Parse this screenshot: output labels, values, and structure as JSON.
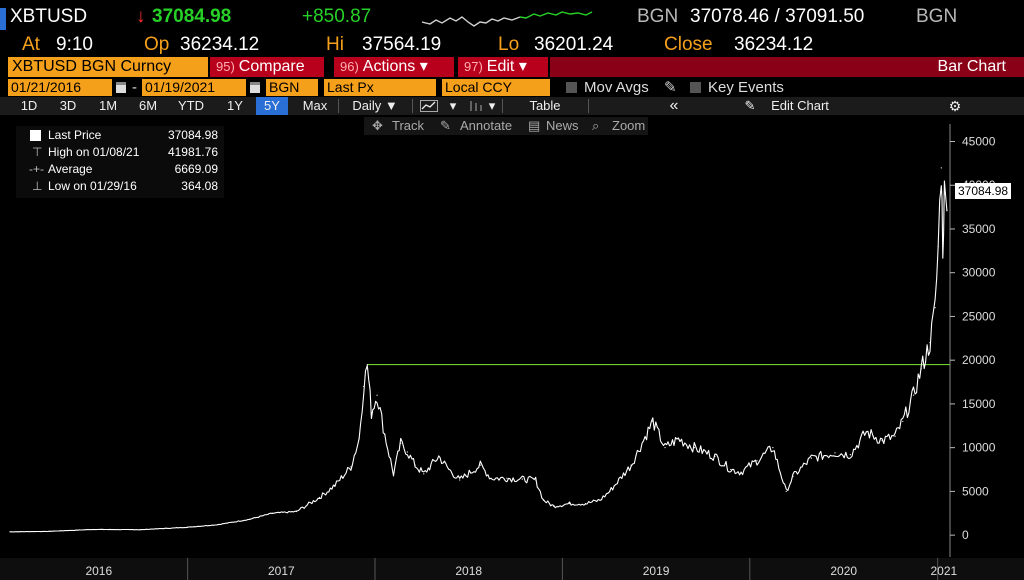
{
  "header": {
    "ticker": "XBTUSD",
    "arrow": "↓",
    "last": "37084.98",
    "change": "+850.87",
    "source1": "BGN",
    "bid_ask": "37078.46 / 37091.50",
    "source2": "BGN",
    "at_label": "At",
    "at_time": "9:10",
    "op_label": "Op",
    "op": "36234.12",
    "hi_label": "Hi",
    "hi": "37564.19",
    "lo_label": "Lo",
    "lo": "36201.24",
    "close_label": "Close",
    "close": "36234.12"
  },
  "menu": {
    "security": "XBTUSD BGN Curncy",
    "compare_num": "95)",
    "compare": "Compare",
    "actions_num": "96)",
    "actions": "Actions ▾",
    "edit_num": "97)",
    "edit": "Edit ▾",
    "view": "Bar Chart"
  },
  "settings": {
    "start_date": "01/21/2016",
    "dash": "-",
    "end_date": "01/19/2021",
    "source": "BGN",
    "field": "Last Px",
    "currency": "Local CCY",
    "mov_avgs": "Mov Avgs",
    "key_events": "Key Events"
  },
  "ranges": {
    "items": [
      "1D",
      "3D",
      "1M",
      "6M",
      "YTD",
      "1Y",
      "5Y",
      "Max"
    ],
    "active": "5Y",
    "period": "Daily ▼",
    "table": "Table",
    "collapse": "«",
    "edit_chart": "Edit Chart",
    "settings_icon": "gear-icon"
  },
  "toolbar": {
    "track": "Track",
    "annotate": "Annotate",
    "news": "News",
    "zoom": "Zoom"
  },
  "legend": {
    "last_label": "Last Price",
    "last_value": "37084.98",
    "high_label": "High on 01/08/21",
    "high_value": "41981.76",
    "avg_label": "Average",
    "avg_value": "6669.09",
    "low_label": "Low on 01/29/16",
    "low_value": "364.08"
  },
  "price_tag": "37084.98",
  "colors": {
    "accent_orange": "#f5a01a",
    "menu_red": "#b8001c",
    "active_blue": "#2a6fd6",
    "price_green": "#27d027",
    "reference_line": "#6ccf2e"
  },
  "chart_data": {
    "type": "line",
    "series": [
      {
        "name": "Last Price",
        "x": [
          "2016-01-21",
          "2016-04-01",
          "2016-07-01",
          "2016-10-01",
          "2017-01-01",
          "2017-03-01",
          "2017-05-01",
          "2017-06-15",
          "2017-08-01",
          "2017-09-15",
          "2017-10-15",
          "2017-11-15",
          "2017-12-01",
          "2017-12-10",
          "2017-12-17",
          "2017-12-25",
          "2018-01-05",
          "2018-01-20",
          "2018-02-06",
          "2018-02-20",
          "2018-03-05",
          "2018-03-20",
          "2018-04-06",
          "2018-05-05",
          "2018-05-25",
          "2018-06-15",
          "2018-07-25",
          "2018-08-15",
          "2018-09-15",
          "2018-10-15",
          "2018-11-10",
          "2018-11-25",
          "2018-12-15",
          "2019-01-15",
          "2019-02-15",
          "2019-03-15",
          "2019-04-03",
          "2019-05-15",
          "2019-06-26",
          "2019-07-20",
          "2019-08-15",
          "2019-09-15",
          "2019-10-25",
          "2019-11-25",
          "2019-12-15",
          "2020-01-15",
          "2020-02-15",
          "2020-03-12",
          "2020-03-25",
          "2020-04-30",
          "2020-06-15",
          "2020-07-15",
          "2020-08-15",
          "2020-09-15",
          "2020-10-10",
          "2020-10-25",
          "2020-11-15",
          "2020-11-30",
          "2020-12-17",
          "2020-12-27",
          "2021-01-02",
          "2021-01-08",
          "2021-01-11",
          "2021-01-14",
          "2021-01-19"
        ],
        "y": [
          380,
          420,
          650,
          620,
          900,
          1200,
          1800,
          2500,
          2700,
          4300,
          5700,
          7800,
          11000,
          17000,
          19500,
          14000,
          16000,
          11500,
          7000,
          10500,
          9500,
          8000,
          7000,
          9000,
          7500,
          6300,
          8000,
          6500,
          6500,
          6400,
          6300,
          4000,
          3300,
          3600,
          3600,
          4000,
          5000,
          8000,
          13000,
          10000,
          11000,
          10000,
          9000,
          7500,
          7200,
          8500,
          10000,
          5000,
          6700,
          8800,
          9400,
          9200,
          11800,
          10800,
          11300,
          13000,
          16000,
          19000,
          22000,
          26000,
          33000,
          41981.76,
          33000,
          39000,
          37084.98
        ]
      }
    ],
    "reference_line": 19500,
    "x_ticks": [
      "2016",
      "2017",
      "2018",
      "2019",
      "2020",
      "2021"
    ],
    "y_ticks": [
      0,
      5000,
      10000,
      15000,
      20000,
      25000,
      30000,
      35000,
      40000,
      45000
    ],
    "ylim": [
      -2500,
      47000
    ],
    "xlim": [
      "2016-01-21",
      "2021-01-25"
    ],
    "grid": false
  }
}
